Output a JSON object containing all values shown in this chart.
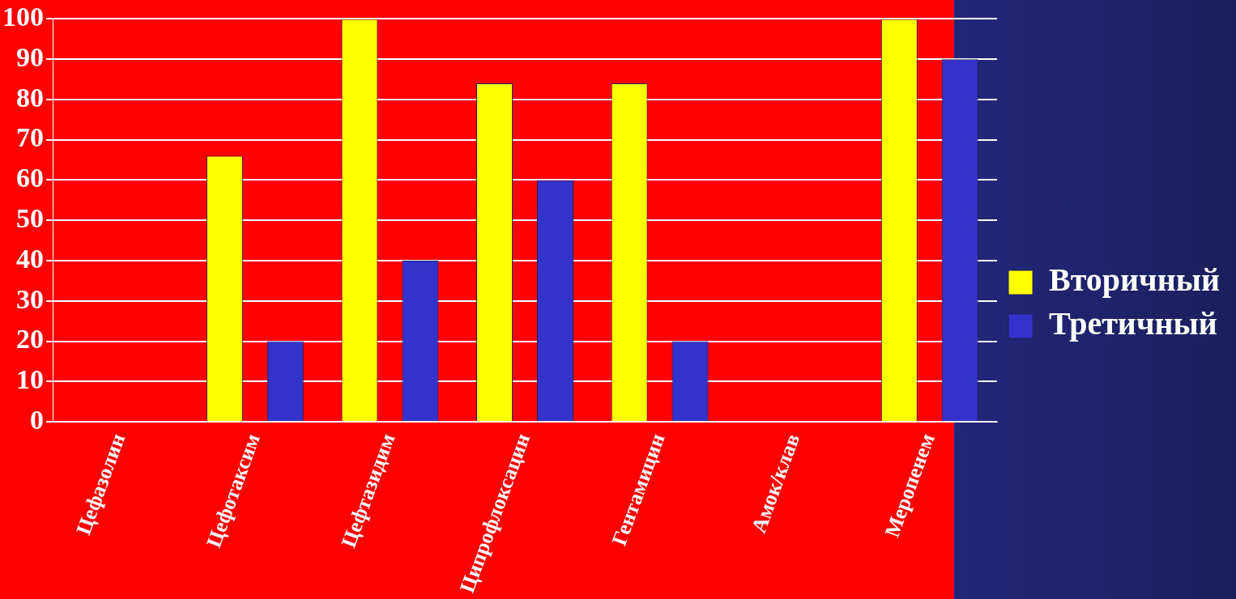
{
  "chart_data": {
    "type": "bar",
    "categories": [
      "Цефазолин",
      "Цефотаксим",
      "Цефтазидим",
      "Ципрофлоксацин",
      "Гентамицин",
      "Амок/клав",
      "Меропенем"
    ],
    "series": [
      {
        "name": "Вторичный",
        "color": "#ffff00",
        "values": [
          0,
          66,
          100,
          84,
          84,
          0,
          100
        ]
      },
      {
        "name": "Третичный",
        "color": "#3333cc",
        "values": [
          0,
          20,
          40,
          60,
          20,
          0,
          90
        ]
      }
    ],
    "ylim": [
      0,
      100
    ],
    "yticks": [
      0,
      10,
      20,
      30,
      40,
      50,
      60,
      70,
      80,
      90,
      100
    ],
    "grid": "y",
    "legend": "right"
  }
}
